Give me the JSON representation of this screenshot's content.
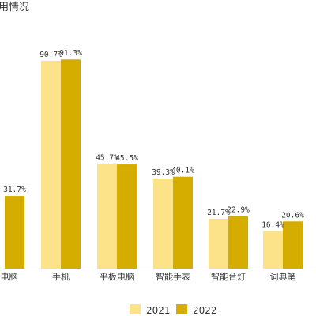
{
  "chart_data": {
    "type": "bar",
    "title": "用情况",
    "categories": [
      "本电脑",
      "手机",
      "平板电脑",
      "智能手表",
      "智能台灯",
      "词典笔"
    ],
    "series": [
      {
        "name": "2021",
        "values": [
          null,
          90.7,
          45.7,
          39.3,
          21.7,
          16.4
        ],
        "labels": [
          "%",
          "90.7%",
          "45.7%",
          "39.3%",
          "21.7%",
          "16.4%"
        ],
        "color": "#fce38a"
      },
      {
        "name": "2022",
        "values": [
          31.7,
          91.3,
          45.5,
          40.1,
          22.9,
          20.6
        ],
        "labels": [
          "31.7%",
          "91.3%",
          "45.5%",
          "40.1%",
          "22.9%",
          "20.6%"
        ],
        "color": "#d4ad00"
      }
    ],
    "ylim": [
      0,
      100
    ],
    "grid": false,
    "legend": "bottom-center",
    "axis_color": "#222222"
  }
}
